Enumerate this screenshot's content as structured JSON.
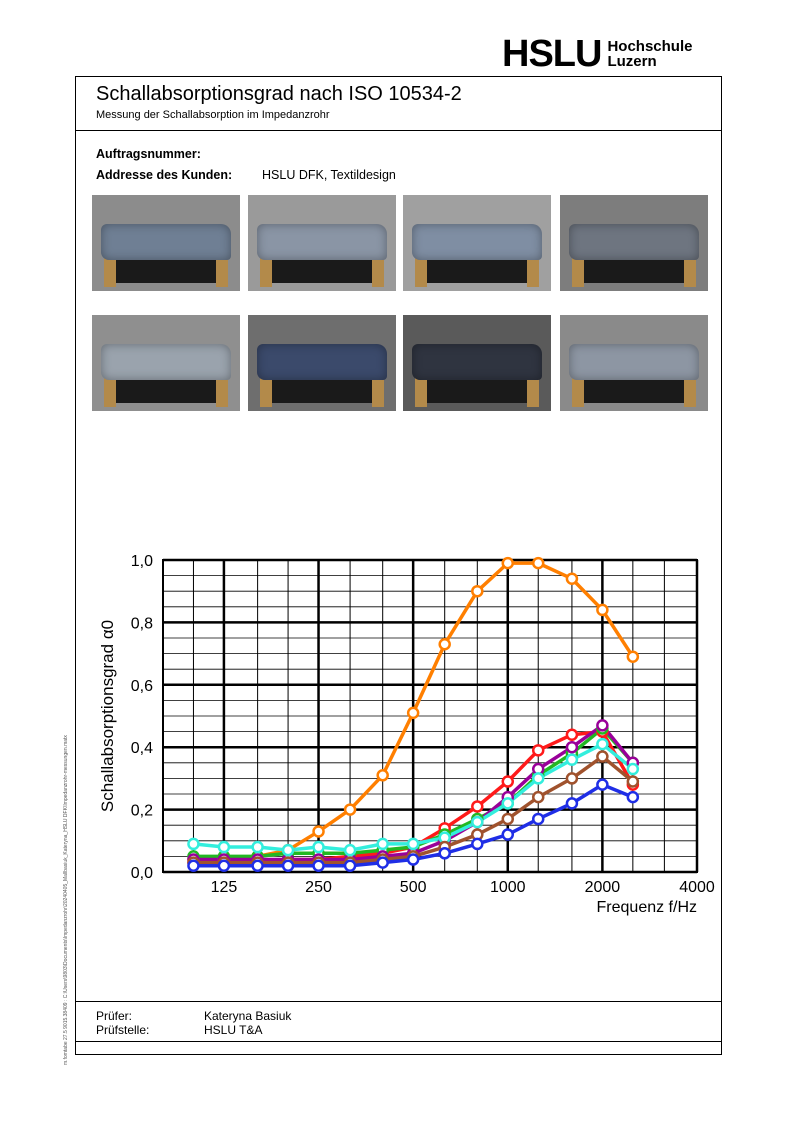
{
  "logo": {
    "main": "HSLU",
    "sub_line1": "Hochschule",
    "sub_line2": "Luzern"
  },
  "header": {
    "title": "Schallabsorptionsgrad nach ISO 10534-2",
    "subtitle": "Messung der Schallabsorption im Impedanzrohr"
  },
  "meta": {
    "order_label": "Auftragsnummer:",
    "order_value": "",
    "address_label": "Addresse des Kunden:",
    "address_value": "HSLU DFK, Textildesign"
  },
  "photos": [
    {
      "bg": "#8c8c8c",
      "mat": "#6f7f94"
    },
    {
      "bg": "#9a9a9a",
      "mat": "#8a95a5"
    },
    {
      "bg": "#a0a0a0",
      "mat": "#7f8ea3"
    },
    {
      "bg": "#7d7d7d",
      "mat": "#6e7580"
    },
    {
      "bg": "#8f8f8f",
      "mat": "#9aa3ad"
    },
    {
      "bg": "#6e6e6e",
      "mat": "#3b4a6b"
    },
    {
      "bg": "#5a5a5a",
      "mat": "#2f3440"
    },
    {
      "bg": "#8a8a8a",
      "mat": "#8d96a3"
    }
  ],
  "chart_data": {
    "type": "line",
    "ylabel": "Schallabsorptionsgrad α0",
    "xlabel": "Frequenz f/Hz",
    "xscale": "log",
    "xlim": [
      80,
      4000
    ],
    "ylim": [
      0,
      1
    ],
    "xticks": [
      125,
      250,
      500,
      1000,
      2000,
      4000
    ],
    "xtick_labels": [
      "125",
      "250",
      "500",
      "1000",
      "2000",
      "4000"
    ],
    "yticks": [
      0,
      0.2,
      0.4,
      0.6,
      0.8,
      1.0
    ],
    "ytick_labels": [
      "0,0",
      "0,2",
      "0,4",
      "0,6",
      "0,8",
      "1,0"
    ],
    "grid": true,
    "x": [
      100,
      125,
      160,
      200,
      250,
      315,
      400,
      500,
      630,
      800,
      1000,
      1250,
      1600,
      2000,
      2500
    ],
    "series": [
      {
        "color": "#ff7f00",
        "values": [
          0.04,
          0.04,
          0.05,
          0.07,
          0.13,
          0.2,
          0.31,
          0.51,
          0.73,
          0.9,
          0.99,
          0.99,
          0.94,
          0.84,
          0.69
        ]
      },
      {
        "color": "#ff1a1a",
        "values": [
          0.03,
          0.03,
          0.03,
          0.04,
          0.04,
          0.05,
          0.06,
          0.08,
          0.14,
          0.21,
          0.29,
          0.39,
          0.44,
          0.45,
          0.28
        ]
      },
      {
        "color": "#22b822",
        "values": [
          0.05,
          0.05,
          0.05,
          0.06,
          0.06,
          0.06,
          0.07,
          0.08,
          0.12,
          0.17,
          0.22,
          0.31,
          0.38,
          0.46,
          0.35
        ]
      },
      {
        "color": "#990099",
        "values": [
          0.04,
          0.04,
          0.04,
          0.04,
          0.04,
          0.04,
          0.05,
          0.06,
          0.1,
          0.16,
          0.24,
          0.33,
          0.4,
          0.47,
          0.35
        ]
      },
      {
        "color": "#33eedd",
        "values": [
          0.09,
          0.08,
          0.08,
          0.07,
          0.08,
          0.07,
          0.09,
          0.09,
          0.11,
          0.16,
          0.22,
          0.3,
          0.36,
          0.41,
          0.33
        ]
      },
      {
        "color": "#a0522d",
        "values": [
          0.03,
          0.03,
          0.03,
          0.03,
          0.03,
          0.03,
          0.04,
          0.05,
          0.08,
          0.12,
          0.17,
          0.24,
          0.3,
          0.37,
          0.29
        ]
      },
      {
        "color": "#1f2ee6",
        "values": [
          0.02,
          0.02,
          0.02,
          0.02,
          0.02,
          0.02,
          0.03,
          0.04,
          0.06,
          0.09,
          0.12,
          0.17,
          0.22,
          0.28,
          0.24
        ]
      }
    ]
  },
  "footer": {
    "tester_label": "Prüfer:",
    "tester_value": "Kateryna Basiuk",
    "lab_label": "Prüfstelle:",
    "lab_value": "HSLU T&A"
  },
  "side_note": "m.fomtabe 27.5 9015.38409 : C:\\Users\\9803\\Documents\\Impedanzrohr\\20240405_Mallbasiuk_Kateryna_HSLU DFK\\Impedanzrohr-messungen.matx"
}
